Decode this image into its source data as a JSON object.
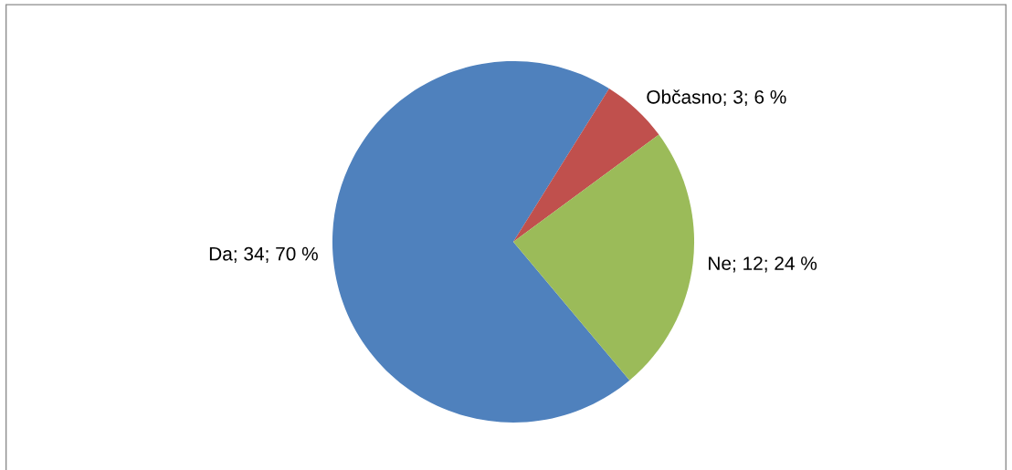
{
  "chart_data": {
    "type": "pie",
    "categories": [
      "Da",
      "Občasno",
      "Ne"
    ],
    "values": [
      70,
      6,
      24
    ],
    "colors": [
      "#4f81bd",
      "#c0504d",
      "#9bbb59"
    ],
    "value_labels": [
      "34; 70 %",
      "3; 6 %",
      "12; 24 %"
    ],
    "legend": false
  }
}
